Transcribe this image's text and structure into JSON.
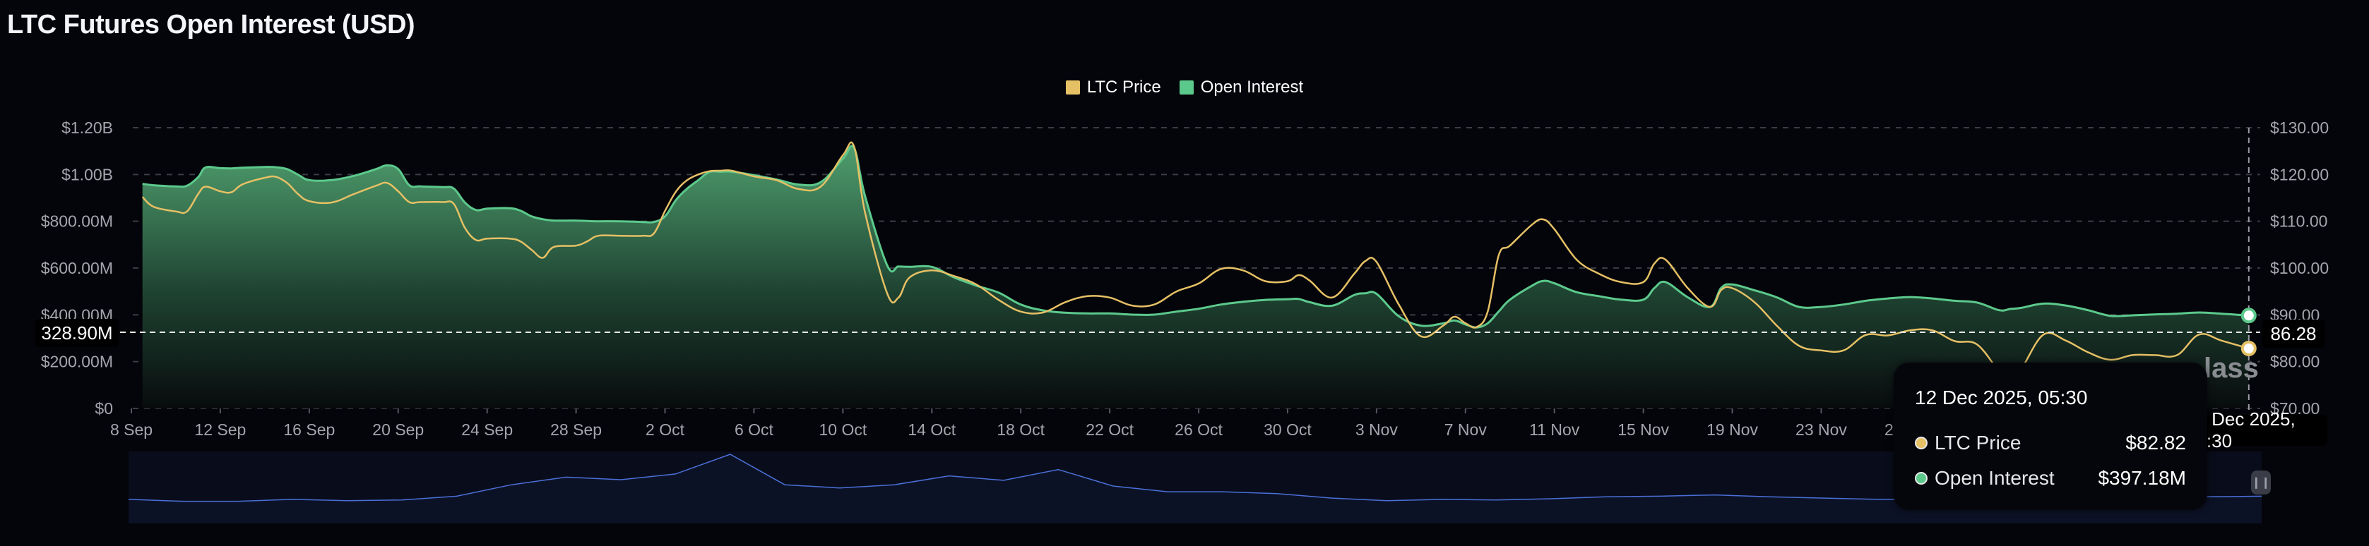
{
  "title": "LTC Futures Open Interest (USD)",
  "colors": {
    "price": "#e6c065",
    "open_interest": "#5cc98c",
    "background": "#04050a",
    "navigator": "#4a6fd8"
  },
  "legend": [
    {
      "label": "LTC Price",
      "color": "#e6c065"
    },
    {
      "label": "Open Interest",
      "color": "#5cc98c"
    }
  ],
  "crosshair": {
    "left_value": "328.90M",
    "right_value": "86.28",
    "x_value": "12 Dec 2025, 05:30"
  },
  "tooltip": {
    "date": "12 Dec 2025, 05:30",
    "rows": [
      {
        "label": "LTC Price",
        "value": "$82.82",
        "color": "#e6c065"
      },
      {
        "label": "Open Interest",
        "value": "$397.18M",
        "color": "#5cc98c"
      }
    ]
  },
  "watermark": "lass",
  "navigator": {
    "handle_icon": "pause-bars-icon",
    "relative_levels": [
      29,
      26,
      26,
      29,
      27,
      28,
      34,
      52,
      64,
      60,
      69,
      100,
      52,
      47,
      52,
      66,
      59,
      76,
      50,
      41,
      41,
      38,
      31,
      27,
      29,
      28,
      30,
      33,
      34,
      36,
      33,
      31,
      29,
      30,
      31,
      30,
      32,
      34,
      33,
      34
    ]
  },
  "chart_data": {
    "type": "line",
    "title": "LTC Futures Open Interest (USD)",
    "left_axis": {
      "ticks": [
        "$0",
        "$200.00M",
        "$400.00M",
        "$600.00M",
        "$800.00M",
        "$1.00B",
        "$1.20B"
      ],
      "range_millions": [
        0,
        1200
      ]
    },
    "right_axis": {
      "ticks": [
        "$70.00",
        "$80.00",
        "$90.00",
        "$100.00",
        "$110.00",
        "$120.00",
        "$130.00"
      ],
      "range": [
        70,
        130
      ]
    },
    "x_ticks": [
      "8 Sep",
      "12 Sep",
      "16 Sep",
      "20 Sep",
      "24 Sep",
      "28 Sep",
      "2 Oct",
      "6 Oct",
      "10 Oct",
      "14 Oct",
      "18 Oct",
      "22 Oct",
      "26 Oct",
      "30 Oct",
      "3 Nov",
      "7 Nov",
      "11 Nov",
      "15 Nov",
      "19 Nov",
      "23 Nov",
      "27 Nov"
    ],
    "x_tick_dates": [
      "2025-09-08",
      "2025-09-12",
      "2025-09-16",
      "2025-09-20",
      "2025-09-24",
      "2025-09-28",
      "2025-10-02",
      "2025-10-06",
      "2025-10-10",
      "2025-10-14",
      "2025-10-18",
      "2025-10-22",
      "2025-10-26",
      "2025-10-30",
      "2025-11-03",
      "2025-11-07",
      "2025-11-11",
      "2025-11-15",
      "2025-11-19",
      "2025-11-23",
      "2025-11-27"
    ],
    "grid": true,
    "legend_position": "top-center",
    "series": [
      {
        "name": "Open Interest",
        "unit": "USD millions",
        "axis": "left",
        "style": "area"
      },
      {
        "name": "LTC Price",
        "unit": "USD",
        "axis": "right",
        "style": "line"
      }
    ],
    "points_columns": [
      "date",
      "open_interest_millions",
      "ltc_price"
    ],
    "points": [
      [
        "2025-09-08T12:00",
        960,
        115.2
      ],
      [
        "2025-09-09T00:00",
        954,
        113.1
      ],
      [
        "2025-09-10T00:00",
        949,
        112.1
      ],
      [
        "2025-09-10T12:00",
        952,
        112.1
      ],
      [
        "2025-09-11T00:00",
        988,
        115.8
      ],
      [
        "2025-09-11T08:00",
        1030,
        117.4
      ],
      [
        "2025-09-12T00:00",
        1027,
        116.4
      ],
      [
        "2025-09-12T12:00",
        1026,
        116.2
      ],
      [
        "2025-09-13T00:00",
        1029,
        117.9
      ],
      [
        "2025-09-14T00:00",
        1032,
        119.3
      ],
      [
        "2025-09-14T12:00",
        1031,
        119.5
      ],
      [
        "2025-09-15T00:00",
        1023,
        118.2
      ],
      [
        "2025-09-15T12:00",
        999,
        115.8
      ],
      [
        "2025-09-16T00:00",
        976,
        114.3
      ],
      [
        "2025-09-17T00:00",
        976,
        114.0
      ],
      [
        "2025-09-18T00:00",
        994,
        115.8
      ],
      [
        "2025-09-19T00:00",
        1023,
        117.6
      ],
      [
        "2025-09-19T12:00",
        1039,
        118.2
      ],
      [
        "2025-09-20T00:00",
        1023,
        116.4
      ],
      [
        "2025-09-20T12:00",
        954,
        114.1
      ],
      [
        "2025-09-21T00:00",
        949,
        114.1
      ],
      [
        "2025-09-22T00:00",
        946,
        114.1
      ],
      [
        "2025-09-22T12:00",
        940,
        113.7
      ],
      [
        "2025-09-23T00:00",
        880,
        108.6
      ],
      [
        "2025-09-23T12:00",
        848,
        106.0
      ],
      [
        "2025-09-24T00:00",
        854,
        106.3
      ],
      [
        "2025-09-25T00:00",
        856,
        106.3
      ],
      [
        "2025-09-25T12:00",
        845,
        105.7
      ],
      [
        "2025-09-26T00:00",
        821,
        103.9
      ],
      [
        "2025-09-26T12:00",
        809,
        102.2
      ],
      [
        "2025-09-27T00:00",
        803,
        104.5
      ],
      [
        "2025-09-28T00:00",
        803,
        104.8
      ],
      [
        "2025-09-28T12:00",
        801,
        105.7
      ],
      [
        "2025-09-29T00:00",
        800,
        106.9
      ],
      [
        "2025-09-30T00:00",
        800,
        106.9
      ],
      [
        "2025-10-01T00:00",
        797,
        106.9
      ],
      [
        "2025-10-01T12:00",
        797,
        107.4
      ],
      [
        "2025-10-02T00:00",
        821,
        112.2
      ],
      [
        "2025-10-02T12:00",
        892,
        116.4
      ],
      [
        "2025-10-03T00:00",
        940,
        118.8
      ],
      [
        "2025-10-03T12:00",
        976,
        120.0
      ],
      [
        "2025-10-04T00:00",
        1011,
        120.7
      ],
      [
        "2025-10-04T12:00",
        1012,
        120.8
      ],
      [
        "2025-10-05T00:00",
        1012,
        120.8
      ],
      [
        "2025-10-06T00:00",
        997,
        119.6
      ],
      [
        "2025-10-07T00:00",
        979,
        118.8
      ],
      [
        "2025-10-08T00:00",
        957,
        116.9
      ],
      [
        "2025-10-09T00:00",
        967,
        117.4
      ],
      [
        "2025-10-10T00:00",
        1068,
        124.1
      ],
      [
        "2025-10-10T12:00",
        1113,
        126.0
      ],
      [
        "2025-10-11T00:00",
        907,
        111.8
      ],
      [
        "2025-10-12T00:00",
        610,
        94.5
      ],
      [
        "2025-10-12T12:00",
        607,
        93.7
      ],
      [
        "2025-10-13T00:00",
        605,
        98.0
      ],
      [
        "2025-10-14T00:00",
        605,
        99.5
      ],
      [
        "2025-10-15T00:00",
        560,
        98.3
      ],
      [
        "2025-10-16T00:00",
        525,
        96.5
      ],
      [
        "2025-10-17T00:00",
        495,
        93.2
      ],
      [
        "2025-10-18T00:00",
        444,
        90.7
      ],
      [
        "2025-10-19T00:00",
        419,
        90.5
      ],
      [
        "2025-10-20T00:00",
        409,
        92.7
      ],
      [
        "2025-10-21T00:00",
        406,
        94.0
      ],
      [
        "2025-10-22T00:00",
        406,
        93.7
      ],
      [
        "2025-10-23T00:00",
        401,
        92.0
      ],
      [
        "2025-10-24T00:00",
        401,
        92.2
      ],
      [
        "2025-10-25T00:00",
        414,
        95.0
      ],
      [
        "2025-10-26T00:00",
        426,
        96.7
      ],
      [
        "2025-10-27T00:00",
        444,
        99.8
      ],
      [
        "2025-10-28T00:00",
        456,
        99.5
      ],
      [
        "2025-10-29T00:00",
        464,
        97.2
      ],
      [
        "2025-10-30T00:00",
        467,
        97.2
      ],
      [
        "2025-10-30T12:00",
        468,
        98.5
      ],
      [
        "2025-10-31T00:00",
        454,
        97.3
      ],
      [
        "2025-11-01T00:00",
        439,
        93.7
      ],
      [
        "2025-11-02T00:00",
        485,
        98.8
      ],
      [
        "2025-11-02T12:00",
        492,
        101.5
      ],
      [
        "2025-11-03T00:00",
        490,
        101.3
      ],
      [
        "2025-11-04T00:00",
        394,
        92.2
      ],
      [
        "2025-11-05T00:00",
        354,
        85.4
      ],
      [
        "2025-11-06T00:00",
        364,
        87.7
      ],
      [
        "2025-11-06T12:00",
        376,
        89.6
      ],
      [
        "2025-11-07T00:00",
        359,
        88.2
      ],
      [
        "2025-11-07T12:00",
        346,
        87.4
      ],
      [
        "2025-11-08T00:00",
        364,
        90.7
      ],
      [
        "2025-11-08T12:00",
        415,
        102.8
      ],
      [
        "2025-11-09T00:00",
        465,
        104.8
      ],
      [
        "2025-11-10T00:00",
        525,
        109.3
      ],
      [
        "2025-11-10T12:00",
        545,
        110.4
      ],
      [
        "2025-11-11T00:00",
        535,
        108.3
      ],
      [
        "2025-11-12T00:00",
        497,
        101.8
      ],
      [
        "2025-11-13T00:00",
        480,
        98.8
      ],
      [
        "2025-11-14T00:00",
        465,
        97.0
      ],
      [
        "2025-11-15T00:00",
        465,
        97.0
      ],
      [
        "2025-11-15T12:00",
        515,
        101.0
      ],
      [
        "2025-11-16T00:00",
        540,
        101.8
      ],
      [
        "2025-11-17T00:00",
        475,
        95.7
      ],
      [
        "2025-11-18T00:00",
        434,
        91.7
      ],
      [
        "2025-11-18T12:00",
        515,
        95.3
      ],
      [
        "2025-11-19T00:00",
        530,
        95.7
      ],
      [
        "2025-11-20T00:00",
        505,
        92.7
      ],
      [
        "2025-11-21T00:00",
        475,
        87.7
      ],
      [
        "2025-11-22T00:00",
        434,
        83.4
      ],
      [
        "2025-11-23T00:00",
        434,
        82.4
      ],
      [
        "2025-11-24T00:00",
        444,
        82.4
      ],
      [
        "2025-11-25T00:00",
        460,
        85.7
      ],
      [
        "2025-11-26T00:00",
        470,
        85.6
      ],
      [
        "2025-11-27T00:00",
        476,
        86.7
      ],
      [
        "2025-11-28T00:00",
        470,
        86.7
      ],
      [
        "2025-11-29T00:00",
        460,
        84.4
      ],
      [
        "2025-11-30T00:00",
        453,
        83.7
      ],
      [
        "2025-12-01T00:00",
        420,
        78.0
      ],
      [
        "2025-12-01T12:00",
        425,
        76.8
      ],
      [
        "2025-12-02T00:00",
        430,
        78.5
      ],
      [
        "2025-12-03T00:00",
        448,
        85.8
      ],
      [
        "2025-12-04T00:00",
        440,
        84.5
      ],
      [
        "2025-12-05T00:00",
        420,
        82.0
      ],
      [
        "2025-12-06T00:00",
        396,
        80.4
      ],
      [
        "2025-12-07T00:00",
        398,
        81.4
      ],
      [
        "2025-12-08T00:00",
        402,
        81.4
      ],
      [
        "2025-12-09T00:00",
        405,
        81.4
      ],
      [
        "2025-12-10T00:00",
        410,
        85.8
      ],
      [
        "2025-12-11T00:00",
        405,
        84.5
      ],
      [
        "2025-12-12T05:30",
        397.18,
        82.82
      ]
    ]
  }
}
